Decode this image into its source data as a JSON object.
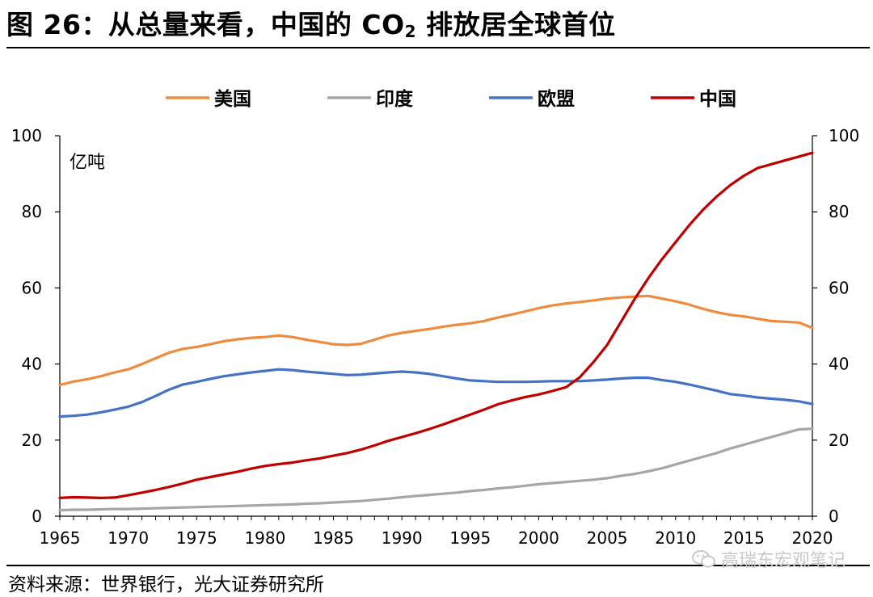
{
  "header": {
    "title_prefix": "图 26：从总量来看，中国的 CO",
    "title_sub": "2",
    "title_suffix": " 排放居全球首位"
  },
  "footer": {
    "source": "资料来源：世界银行，光大证券研究所",
    "watermark": "高瑞东宏观笔记",
    "watermark_icon": "wechat-icon"
  },
  "chart_data": {
    "type": "line",
    "unit_label": "亿吨",
    "ylim": [
      0,
      100
    ],
    "y_ticks": [
      "0",
      "20",
      "40",
      "60",
      "80",
      "100"
    ],
    "xlim": [
      1965,
      2020
    ],
    "x_ticks": [
      "1965",
      "1970",
      "1975",
      "1980",
      "1985",
      "1990",
      "1995",
      "2000",
      "2005",
      "2010",
      "2015",
      "2020"
    ],
    "legend_position": "top",
    "grid": false,
    "x": [
      1965,
      1966,
      1967,
      1968,
      1969,
      1970,
      1971,
      1972,
      1973,
      1974,
      1975,
      1976,
      1977,
      1978,
      1979,
      1980,
      1981,
      1982,
      1983,
      1984,
      1985,
      1986,
      1987,
      1988,
      1989,
      1990,
      1991,
      1992,
      1993,
      1994,
      1995,
      1996,
      1997,
      1998,
      1999,
      2000,
      2001,
      2002,
      2003,
      2004,
      2005,
      2006,
      2007,
      2008,
      2009,
      2010,
      2011,
      2012,
      2013,
      2014,
      2015,
      2016,
      2017,
      2018,
      2019,
      2020
    ],
    "series": [
      {
        "name": "美国",
        "color": "#ED8B3E",
        "values": [
          34.5,
          35.4,
          36.0,
          36.8,
          37.8,
          38.6,
          40.0,
          41.5,
          43.0,
          44.0,
          44.5,
          45.2,
          46.0,
          46.5,
          46.9,
          47.1,
          47.5,
          47.1,
          46.4,
          45.8,
          45.2,
          45.0,
          45.3,
          46.4,
          47.5,
          48.2,
          48.7,
          49.2,
          49.8,
          50.3,
          50.7,
          51.3,
          52.2,
          53.0,
          53.8,
          54.7,
          55.4,
          55.9,
          56.3,
          56.7,
          57.2,
          57.5,
          57.7,
          57.9,
          57.2,
          56.5,
          55.6,
          54.5,
          53.6,
          52.9,
          52.5,
          51.9,
          51.3,
          51.1,
          50.9,
          49.5
        ]
      },
      {
        "name": "印度",
        "color": "#A6A6A6",
        "values": [
          1.6,
          1.7,
          1.7,
          1.8,
          1.9,
          1.9,
          2.0,
          2.1,
          2.2,
          2.3,
          2.4,
          2.5,
          2.6,
          2.7,
          2.8,
          2.9,
          3.0,
          3.1,
          3.3,
          3.4,
          3.6,
          3.8,
          4.0,
          4.3,
          4.6,
          5.0,
          5.3,
          5.6,
          5.9,
          6.2,
          6.6,
          6.9,
          7.3,
          7.6,
          8.0,
          8.4,
          8.7,
          9.0,
          9.3,
          9.6,
          10.0,
          10.6,
          11.1,
          11.8,
          12.6,
          13.6,
          14.6,
          15.6,
          16.6,
          17.8,
          18.8,
          19.8,
          20.8,
          21.8,
          22.8,
          23.0
        ]
      },
      {
        "name": "欧盟",
        "color": "#4472C4",
        "values": [
          26.2,
          26.4,
          26.7,
          27.3,
          28.0,
          28.8,
          30.0,
          31.6,
          33.3,
          34.6,
          35.3,
          36.1,
          36.8,
          37.3,
          37.8,
          38.2,
          38.6,
          38.4,
          38.0,
          37.7,
          37.4,
          37.1,
          37.2,
          37.5,
          37.8,
          38.0,
          37.8,
          37.4,
          36.8,
          36.2,
          35.7,
          35.5,
          35.3,
          35.3,
          35.3,
          35.4,
          35.5,
          35.5,
          35.5,
          35.7,
          35.9,
          36.2,
          36.4,
          36.4,
          35.8,
          35.3,
          34.6,
          33.8,
          33.0,
          32.1,
          31.7,
          31.2,
          30.9,
          30.6,
          30.2,
          29.5
        ]
      },
      {
        "name": "中国",
        "color": "#C00000",
        "values": [
          4.8,
          5.0,
          4.9,
          4.8,
          4.9,
          5.5,
          6.2,
          6.9,
          7.7,
          8.6,
          9.6,
          10.3,
          11.0,
          11.7,
          12.5,
          13.2,
          13.7,
          14.1,
          14.7,
          15.2,
          15.9,
          16.6,
          17.5,
          18.6,
          19.8,
          20.8,
          21.8,
          22.9,
          24.1,
          25.4,
          26.7,
          28.0,
          29.4,
          30.4,
          31.3,
          32.0,
          32.9,
          33.9,
          36.5,
          40.5,
          45.0,
          51.0,
          57.0,
          62.5,
          67.5,
          72.0,
          76.5,
          80.5,
          84.0,
          87.0,
          89.5,
          91.5,
          92.5,
          93.5,
          94.5,
          95.5
        ]
      }
    ]
  }
}
